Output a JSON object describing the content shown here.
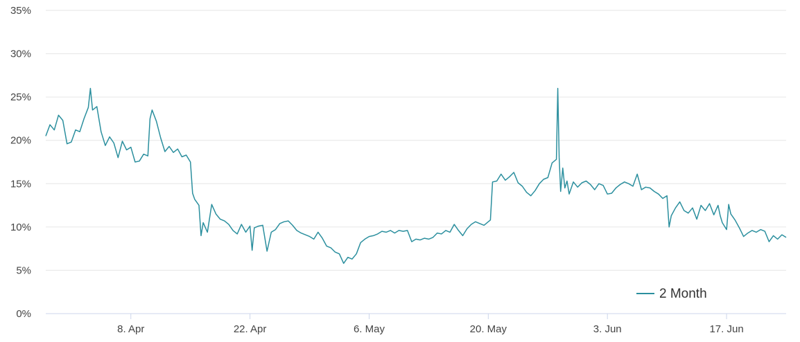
{
  "chart_data": {
    "type": "line",
    "title": "",
    "xlabel": "",
    "ylabel": "",
    "x_range": [
      "2024-03-29",
      "2024-06-24"
    ],
    "ylim": [
      0,
      35
    ],
    "y_ticks": [
      {
        "value": 0,
        "label": "0%"
      },
      {
        "value": 5,
        "label": "5%"
      },
      {
        "value": 10,
        "label": "10%"
      },
      {
        "value": 15,
        "label": "15%"
      },
      {
        "value": 20,
        "label": "20%"
      },
      {
        "value": 25,
        "label": "25%"
      },
      {
        "value": 30,
        "label": "30%"
      },
      {
        "value": 35,
        "label": "35%"
      }
    ],
    "x_ticks": [
      {
        "date": "2024-04-08",
        "label": "8. Apr"
      },
      {
        "date": "2024-04-22",
        "label": "22. Apr"
      },
      {
        "date": "2024-05-06",
        "label": "6. May"
      },
      {
        "date": "2024-05-20",
        "label": "20. May"
      },
      {
        "date": "2024-06-03",
        "label": "3. Jun"
      },
      {
        "date": "2024-06-17",
        "label": "17. Jun"
      }
    ],
    "grid": "horizontal",
    "legend_position": "bottom-right",
    "series": [
      {
        "name": "2 Month",
        "color": "#2b8f9e",
        "points": [
          [
            "2024-03-29",
            20.5
          ],
          [
            "2024-03-29T12:00",
            21.8
          ],
          [
            "2024-03-30",
            21.2
          ],
          [
            "2024-03-30T12:00",
            22.9
          ],
          [
            "2024-03-31",
            22.3
          ],
          [
            "2024-03-31T12:00",
            19.6
          ],
          [
            "2024-04-01",
            19.8
          ],
          [
            "2024-04-01T12:00",
            21.2
          ],
          [
            "2024-04-02",
            21.0
          ],
          [
            "2024-04-02T12:00",
            22.5
          ],
          [
            "2024-04-03",
            23.8
          ],
          [
            "2024-04-03T06:00",
            26.0
          ],
          [
            "2024-04-03T12:00",
            23.5
          ],
          [
            "2024-04-04",
            23.9
          ],
          [
            "2024-04-04T12:00",
            21.0
          ],
          [
            "2024-04-05",
            19.4
          ],
          [
            "2024-04-05T12:00",
            20.4
          ],
          [
            "2024-04-06",
            19.7
          ],
          [
            "2024-04-06T12:00",
            18.0
          ],
          [
            "2024-04-07",
            19.9
          ],
          [
            "2024-04-07T12:00",
            18.9
          ],
          [
            "2024-04-08",
            19.2
          ],
          [
            "2024-04-08T12:00",
            17.5
          ],
          [
            "2024-04-09",
            17.6
          ],
          [
            "2024-04-09T12:00",
            18.4
          ],
          [
            "2024-04-10",
            18.2
          ],
          [
            "2024-04-10T06:00",
            22.5
          ],
          [
            "2024-04-10T12:00",
            23.5
          ],
          [
            "2024-04-11",
            22.2
          ],
          [
            "2024-04-11T12:00",
            20.3
          ],
          [
            "2024-04-12",
            18.7
          ],
          [
            "2024-04-12T12:00",
            19.3
          ],
          [
            "2024-04-13",
            18.6
          ],
          [
            "2024-04-13T12:00",
            19.0
          ],
          [
            "2024-04-14",
            18.1
          ],
          [
            "2024-04-14T12:00",
            18.3
          ],
          [
            "2024-04-15",
            17.5
          ],
          [
            "2024-04-15T06:00",
            13.9
          ],
          [
            "2024-04-15T12:00",
            13.2
          ],
          [
            "2024-04-16",
            12.5
          ],
          [
            "2024-04-16T06:00",
            9.0
          ],
          [
            "2024-04-16T12:00",
            10.5
          ],
          [
            "2024-04-17",
            9.4
          ],
          [
            "2024-04-17T12:00",
            12.6
          ],
          [
            "2024-04-18",
            11.5
          ],
          [
            "2024-04-18T12:00",
            10.9
          ],
          [
            "2024-04-19",
            10.7
          ],
          [
            "2024-04-19T12:00",
            10.3
          ],
          [
            "2024-04-20",
            9.6
          ],
          [
            "2024-04-20T12:00",
            9.2
          ],
          [
            "2024-04-21",
            10.3
          ],
          [
            "2024-04-21T12:00",
            9.4
          ],
          [
            "2024-04-22",
            10.1
          ],
          [
            "2024-04-22T06:00",
            7.3
          ],
          [
            "2024-04-22T12:00",
            9.9
          ],
          [
            "2024-04-23",
            10.1
          ],
          [
            "2024-04-23T12:00",
            10.2
          ],
          [
            "2024-04-24",
            7.2
          ],
          [
            "2024-04-24T12:00",
            9.4
          ],
          [
            "2024-04-25",
            9.7
          ],
          [
            "2024-04-25T12:00",
            10.4
          ],
          [
            "2024-04-26",
            10.6
          ],
          [
            "2024-04-26T12:00",
            10.7
          ],
          [
            "2024-04-27",
            10.2
          ],
          [
            "2024-04-27T12:00",
            9.6
          ],
          [
            "2024-04-28",
            9.3
          ],
          [
            "2024-04-28T12:00",
            9.1
          ],
          [
            "2024-04-29",
            8.9
          ],
          [
            "2024-04-29T12:00",
            8.6
          ],
          [
            "2024-04-30",
            9.4
          ],
          [
            "2024-04-30T12:00",
            8.7
          ],
          [
            "2024-05-01",
            7.8
          ],
          [
            "2024-05-01T12:00",
            7.6
          ],
          [
            "2024-05-02",
            7.1
          ],
          [
            "2024-05-02T12:00",
            6.9
          ],
          [
            "2024-05-03",
            5.8
          ],
          [
            "2024-05-03T12:00",
            6.5
          ],
          [
            "2024-05-04",
            6.3
          ],
          [
            "2024-05-04T12:00",
            6.9
          ],
          [
            "2024-05-05",
            8.2
          ],
          [
            "2024-05-05T12:00",
            8.6
          ],
          [
            "2024-05-06",
            8.9
          ],
          [
            "2024-05-06T12:00",
            9.0
          ],
          [
            "2024-05-07",
            9.2
          ],
          [
            "2024-05-07T12:00",
            9.5
          ],
          [
            "2024-05-08",
            9.4
          ],
          [
            "2024-05-08T12:00",
            9.6
          ],
          [
            "2024-05-09",
            9.3
          ],
          [
            "2024-05-09T12:00",
            9.6
          ],
          [
            "2024-05-10",
            9.5
          ],
          [
            "2024-05-10T12:00",
            9.6
          ],
          [
            "2024-05-11",
            8.3
          ],
          [
            "2024-05-11T12:00",
            8.6
          ],
          [
            "2024-05-12",
            8.5
          ],
          [
            "2024-05-12T12:00",
            8.7
          ],
          [
            "2024-05-13",
            8.6
          ],
          [
            "2024-05-13T12:00",
            8.8
          ],
          [
            "2024-05-14",
            9.3
          ],
          [
            "2024-05-14T12:00",
            9.2
          ],
          [
            "2024-05-15",
            9.6
          ],
          [
            "2024-05-15T12:00",
            9.4
          ],
          [
            "2024-05-16",
            10.3
          ],
          [
            "2024-05-16T12:00",
            9.6
          ],
          [
            "2024-05-17",
            9.0
          ],
          [
            "2024-05-17T12:00",
            9.8
          ],
          [
            "2024-05-18",
            10.3
          ],
          [
            "2024-05-18T12:00",
            10.6
          ],
          [
            "2024-05-19",
            10.4
          ],
          [
            "2024-05-19T12:00",
            10.2
          ],
          [
            "2024-05-20",
            10.6
          ],
          [
            "2024-05-20T06:00",
            10.8
          ],
          [
            "2024-05-20T12:00",
            15.2
          ],
          [
            "2024-05-21",
            15.3
          ],
          [
            "2024-05-21T12:00",
            16.1
          ],
          [
            "2024-05-22",
            15.4
          ],
          [
            "2024-05-22T12:00",
            15.8
          ],
          [
            "2024-05-23",
            16.3
          ],
          [
            "2024-05-23T12:00",
            15.1
          ],
          [
            "2024-05-24",
            14.7
          ],
          [
            "2024-05-24T12:00",
            14.0
          ],
          [
            "2024-05-25",
            13.6
          ],
          [
            "2024-05-25T12:00",
            14.2
          ],
          [
            "2024-05-26",
            15.0
          ],
          [
            "2024-05-26T12:00",
            15.5
          ],
          [
            "2024-05-27",
            15.7
          ],
          [
            "2024-05-27T12:00",
            17.4
          ],
          [
            "2024-05-28",
            17.8
          ],
          [
            "2024-05-28T04:00",
            26.0
          ],
          [
            "2024-05-28T08:00",
            18.0
          ],
          [
            "2024-05-28T12:00",
            14.1
          ],
          [
            "2024-05-28T18:00",
            16.8
          ],
          [
            "2024-05-29",
            14.5
          ],
          [
            "2024-05-29T06:00",
            15.3
          ],
          [
            "2024-05-29T12:00",
            13.8
          ],
          [
            "2024-05-30",
            15.2
          ],
          [
            "2024-05-30T12:00",
            14.6
          ],
          [
            "2024-05-31",
            15.1
          ],
          [
            "2024-05-31T12:00",
            15.3
          ],
          [
            "2024-06-01",
            14.9
          ],
          [
            "2024-06-01T12:00",
            14.3
          ],
          [
            "2024-06-02",
            15.0
          ],
          [
            "2024-06-02T12:00",
            14.8
          ],
          [
            "2024-06-03",
            13.8
          ],
          [
            "2024-06-03T12:00",
            13.9
          ],
          [
            "2024-06-04",
            14.5
          ],
          [
            "2024-06-04T12:00",
            14.9
          ],
          [
            "2024-06-05",
            15.2
          ],
          [
            "2024-06-05T12:00",
            15.0
          ],
          [
            "2024-06-06",
            14.7
          ],
          [
            "2024-06-06T12:00",
            16.1
          ],
          [
            "2024-06-07",
            14.3
          ],
          [
            "2024-06-07T12:00",
            14.6
          ],
          [
            "2024-06-08",
            14.5
          ],
          [
            "2024-06-08T12:00",
            14.1
          ],
          [
            "2024-06-09",
            13.8
          ],
          [
            "2024-06-09T12:00",
            13.3
          ],
          [
            "2024-06-10",
            13.6
          ],
          [
            "2024-06-10T06:00",
            10.0
          ],
          [
            "2024-06-10T12:00",
            11.3
          ],
          [
            "2024-06-11",
            12.2
          ],
          [
            "2024-06-11T12:00",
            12.9
          ],
          [
            "2024-06-12",
            11.9
          ],
          [
            "2024-06-12T12:00",
            11.6
          ],
          [
            "2024-06-13",
            12.2
          ],
          [
            "2024-06-13T12:00",
            10.9
          ],
          [
            "2024-06-14",
            12.5
          ],
          [
            "2024-06-14T12:00",
            11.9
          ],
          [
            "2024-06-15",
            12.7
          ],
          [
            "2024-06-15T12:00",
            11.4
          ],
          [
            "2024-06-16",
            12.5
          ],
          [
            "2024-06-16T06:00",
            11.3
          ],
          [
            "2024-06-16T12:00",
            10.5
          ],
          [
            "2024-06-17",
            9.7
          ],
          [
            "2024-06-17T06:00",
            12.6
          ],
          [
            "2024-06-17T12:00",
            11.5
          ],
          [
            "2024-06-18",
            10.8
          ],
          [
            "2024-06-18T12:00",
            9.9
          ],
          [
            "2024-06-19",
            8.9
          ],
          [
            "2024-06-19T12:00",
            9.3
          ],
          [
            "2024-06-20",
            9.6
          ],
          [
            "2024-06-20T12:00",
            9.4
          ],
          [
            "2024-06-21",
            9.7
          ],
          [
            "2024-06-21T12:00",
            9.5
          ],
          [
            "2024-06-22",
            8.3
          ],
          [
            "2024-06-22T12:00",
            9.0
          ],
          [
            "2024-06-23",
            8.6
          ],
          [
            "2024-06-23T12:00",
            9.1
          ],
          [
            "2024-06-24",
            8.8
          ]
        ]
      }
    ]
  }
}
